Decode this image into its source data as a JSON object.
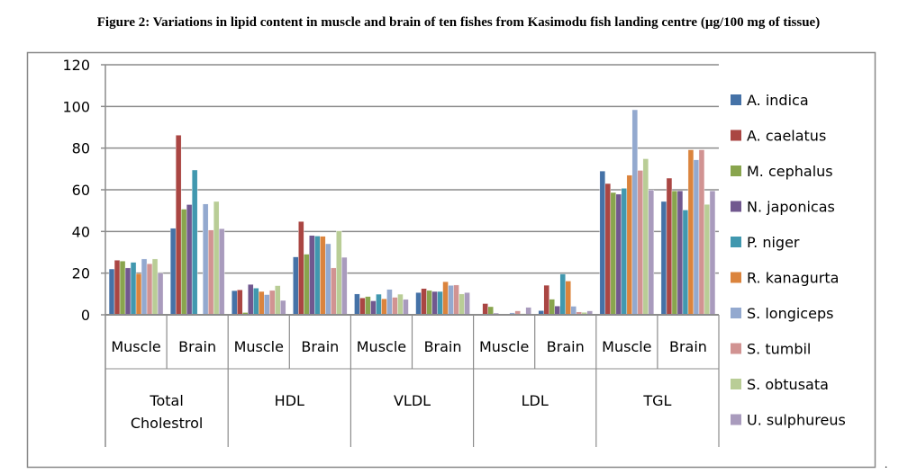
{
  "chart_data": {
    "type": "bar",
    "title": "Figure 2:  Variations in lipid content in muscle and brain of ten fishes from Kasimodu fish landing centre (µg/100 mg of tissue)",
    "xlabel": "",
    "ylabel": "",
    "ylim": [
      0,
      120
    ],
    "yticks": [
      "0",
      "20",
      "40",
      "60",
      "80",
      "100",
      "120"
    ],
    "grid": true,
    "legend_position": "right",
    "groups": [
      "Total Cholestrol",
      "HDL",
      "VLDL",
      "LDL",
      "TGL"
    ],
    "categories": [
      "Muscle",
      "Brain",
      "Muscle",
      "Brain",
      "Muscle",
      "Brain",
      "Muscle",
      "Brain",
      "Muscle",
      "Brain"
    ],
    "series": [
      {
        "name": "A. indica",
        "color": "#4572A7",
        "values": [
          22,
          41.5,
          11.6,
          27.8,
          10,
          10.7,
          0.4,
          2,
          69,
          54.4
        ]
      },
      {
        "name": "A. caelatus",
        "color": "#AA4643",
        "values": [
          26.2,
          86.2,
          12,
          44.8,
          8.1,
          12.6,
          5.4,
          14.2,
          63,
          65.6
        ]
      },
      {
        "name": "M. cephalus",
        "color": "#89A54E",
        "values": [
          25.8,
          50.7,
          1.1,
          29.1,
          8.8,
          11.7,
          3.9,
          7.5,
          58.7,
          59.5
        ]
      },
      {
        "name": "N. japonicas",
        "color": "#71588F",
        "values": [
          22.5,
          52.9,
          14.6,
          38.1,
          6.7,
          11.2,
          0.7,
          4.2,
          57.9,
          59.5
        ]
      },
      {
        "name": "P. niger",
        "color": "#4198AF",
        "values": [
          25.2,
          69.5,
          12.8,
          37.8,
          9.9,
          11.2,
          0.4,
          19.6,
          60.7,
          50.3
        ]
      },
      {
        "name": "R. kanagurta",
        "color": "#DB843D",
        "values": [
          19.8,
          0,
          11.2,
          37.7,
          7.7,
          15.9,
          0.4,
          16.2,
          67,
          79.2
        ]
      },
      {
        "name": "S. longiceps",
        "color": "#93A9CF",
        "values": [
          26.8,
          53.2,
          9.7,
          34.1,
          12.2,
          14.1,
          1,
          4.1,
          98.4,
          74.4
        ]
      },
      {
        "name": "S. tumbil",
        "color": "#D19392",
        "values": [
          24.5,
          40.7,
          11.7,
          22.5,
          8.4,
          14.3,
          1.9,
          1.4,
          69.3,
          79.2
        ]
      },
      {
        "name": "S. obtusata",
        "color": "#B9CD96",
        "values": [
          26.8,
          54.4,
          14,
          40.3,
          9.9,
          10,
          0.6,
          1.2,
          74.9,
          53
        ]
      },
      {
        "name": "U. sulphureus",
        "color": "#A99BBD",
        "values": [
          20,
          41.3,
          6.9,
          27.6,
          7.4,
          10.7,
          3.6,
          1.9,
          59.9,
          59.5
        ]
      }
    ]
  },
  "trailing_mark": "."
}
